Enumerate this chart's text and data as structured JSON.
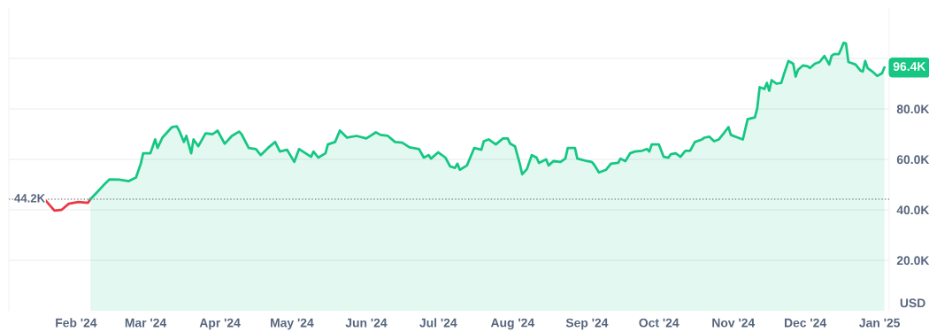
{
  "chart_data": {
    "type": "area",
    "ylabel": "USD",
    "series": [
      {
        "type": "line",
        "color": "#ea3943",
        "x": [
          "2024-01-19",
          "2024-01-23",
          "2024-01-26",
          "2024-01-29",
          "2024-02-02",
          "2024-02-06",
          "2024-02-07"
        ],
        "values": [
          44100,
          39700,
          40000,
          42400,
          43100,
          42800,
          44200
        ]
      },
      {
        "color": "#16c784",
        "x": [
          "2024-02-07",
          "2024-02-10",
          "2024-02-13",
          "2024-02-15",
          "2024-02-19",
          "2024-02-23",
          "2024-02-26",
          "2024-02-28",
          "2024-02-29",
          "2024-03-03",
          "2024-03-05",
          "2024-03-06",
          "2024-03-08",
          "2024-03-12",
          "2024-03-14",
          "2024-03-15",
          "2024-03-17",
          "2024-03-18",
          "2024-03-20",
          "2024-03-21",
          "2024-03-23",
          "2024-03-26",
          "2024-03-29",
          "2024-03-31",
          "2024-04-03",
          "2024-04-06",
          "2024-04-09",
          "2024-04-10",
          "2024-04-13",
          "2024-04-16",
          "2024-04-18",
          "2024-04-21",
          "2024-04-24",
          "2024-04-26",
          "2024-04-29",
          "2024-05-02",
          "2024-05-04",
          "2024-05-09",
          "2024-05-10",
          "2024-05-12",
          "2024-05-15",
          "2024-05-16",
          "2024-05-19",
          "2024-05-21",
          "2024-05-24",
          "2024-05-28",
          "2024-06-01",
          "2024-06-05",
          "2024-06-07",
          "2024-06-10",
          "2024-06-13",
          "2024-06-16",
          "2024-06-19",
          "2024-06-23",
          "2024-06-25",
          "2024-06-27",
          "2024-06-28",
          "2024-07-01",
          "2024-07-04",
          "2024-07-06",
          "2024-07-08",
          "2024-07-09",
          "2024-07-10",
          "2024-07-13",
          "2024-07-16",
          "2024-07-19",
          "2024-07-20",
          "2024-07-22",
          "2024-07-25",
          "2024-07-28",
          "2024-07-30",
          "2024-07-31",
          "2024-08-02",
          "2024-08-03",
          "2024-08-04",
          "2024-08-05",
          "2024-08-07",
          "2024-08-09",
          "2024-08-11",
          "2024-08-12",
          "2024-08-15",
          "2024-08-16",
          "2024-08-18",
          "2024-08-21",
          "2024-08-23",
          "2024-08-24",
          "2024-08-27",
          "2024-08-28",
          "2024-09-01",
          "2024-09-03",
          "2024-09-04",
          "2024-09-06",
          "2024-09-09",
          "2024-09-11",
          "2024-09-14",
          "2024-09-15",
          "2024-09-17",
          "2024-09-19",
          "2024-09-21",
          "2024-09-24",
          "2024-09-26",
          "2024-09-27",
          "2024-09-28",
          "2024-10-01",
          "2024-10-03",
          "2024-10-05",
          "2024-10-06",
          "2024-10-08",
          "2024-10-10",
          "2024-10-12",
          "2024-10-14",
          "2024-10-16",
          "2024-10-19",
          "2024-10-20",
          "2024-10-22",
          "2024-10-24",
          "2024-10-26",
          "2024-10-28",
          "2024-10-30",
          "2024-10-31",
          "2024-11-03",
          "2024-11-05",
          "2024-11-07",
          "2024-11-10",
          "2024-11-11",
          "2024-11-12",
          "2024-11-14",
          "2024-11-15",
          "2024-11-16",
          "2024-11-17",
          "2024-11-19",
          "2024-11-21",
          "2024-11-22",
          "2024-11-24",
          "2024-11-26",
          "2024-11-27",
          "2024-11-28",
          "2024-11-30",
          "2024-12-02",
          "2024-12-03",
          "2024-12-05",
          "2024-12-07",
          "2024-12-09",
          "2024-12-11",
          "2024-12-12",
          "2024-12-13",
          "2024-12-15",
          "2024-12-16",
          "2024-12-17",
          "2024-12-18",
          "2024-12-19",
          "2024-12-22",
          "2024-12-24",
          "2024-12-25",
          "2024-12-26",
          "2024-12-27",
          "2024-12-29",
          "2024-12-31",
          "2025-01-02",
          "2025-01-03"
        ],
        "values": [
          44200,
          47200,
          50300,
          52100,
          52000,
          51400,
          52800,
          58300,
          62400,
          62400,
          67900,
          64500,
          68600,
          72800,
          73100,
          71400,
          66900,
          69300,
          62400,
          67900,
          65200,
          70300,
          70000,
          71400,
          66200,
          69300,
          71000,
          70000,
          64500,
          64100,
          61700,
          64500,
          66900,
          63100,
          63800,
          59000,
          64100,
          61000,
          63100,
          60700,
          62400,
          65900,
          66900,
          71400,
          68600,
          69300,
          68300,
          70700,
          69700,
          69300,
          66900,
          66600,
          64800,
          64100,
          60700,
          61700,
          60300,
          62800,
          60700,
          57200,
          56600,
          58300,
          55900,
          57600,
          64500,
          63800,
          67200,
          67900,
          65900,
          68300,
          68300,
          66200,
          65200,
          61700,
          58300,
          54100,
          56200,
          61700,
          60700,
          58600,
          60000,
          57600,
          59300,
          59000,
          60300,
          64500,
          64500,
          60300,
          59300,
          59000,
          57900,
          54800,
          55900,
          58300,
          58600,
          60300,
          59300,
          62400,
          63100,
          63400,
          64100,
          63100,
          65900,
          65900,
          61000,
          60700,
          62100,
          62400,
          61000,
          63400,
          63400,
          66900,
          67900,
          68600,
          69000,
          67200,
          67900,
          70300,
          72800,
          69700,
          68600,
          67900,
          75900,
          76600,
          80300,
          88600,
          87900,
          90300,
          87200,
          91400,
          90000,
          90300,
          93400,
          99000,
          97900,
          92800,
          95500,
          97200,
          96900,
          96200,
          97900,
          98600,
          101000,
          97600,
          101000,
          101700,
          101700,
          103800,
          106200,
          105900,
          98600,
          97600,
          95200,
          94800,
          99000,
          96200,
          94800,
          93100,
          94100,
          96400
        ]
      }
    ],
    "xlim": [
      "2024-01-04",
      "2025-01-05"
    ],
    "xticks": [
      {
        "value": "2024-02-01",
        "label": "Feb '24"
      },
      {
        "value": "2024-03-01",
        "label": "Mar '24"
      },
      {
        "value": "2024-04-01",
        "label": "Apr '24"
      },
      {
        "value": "2024-05-01",
        "label": "May '24"
      },
      {
        "value": "2024-06-01",
        "label": "Jun '24"
      },
      {
        "value": "2024-07-01",
        "label": "Jul '24"
      },
      {
        "value": "2024-08-01",
        "label": "Aug '24"
      },
      {
        "value": "2024-09-01",
        "label": "Sep '24"
      },
      {
        "value": "2024-10-01",
        "label": "Oct '24"
      },
      {
        "value": "2024-11-01",
        "label": "Nov '24"
      },
      {
        "value": "2024-12-01",
        "label": "Dec '24"
      },
      {
        "value": "2025-01-01",
        "label": "Jan '25"
      }
    ],
    "ylim": [
      0,
      120000
    ],
    "yticks": [
      {
        "value": 20000,
        "label": "20.0K"
      },
      {
        "value": 40000,
        "label": "40.0K"
      },
      {
        "value": 60000,
        "label": "60.0K"
      },
      {
        "value": 80000,
        "label": "80.0K"
      },
      {
        "value": 100000,
        "label": null
      }
    ],
    "grid": "y",
    "line_style": "solid",
    "marker": "none",
    "ref_lines": [
      {
        "axis": "y",
        "value": 44200,
        "label": "44.2K",
        "color": "#8a919e",
        "line_style": "dotted"
      }
    ],
    "annotations": [
      {
        "text": "96.4K",
        "x": "2025-01-03",
        "y": 96400
      }
    ]
  }
}
